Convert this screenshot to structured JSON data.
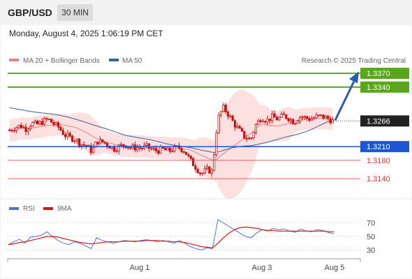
{
  "header": {
    "pair": "GBP/USD",
    "timeframe": "30 MIN"
  },
  "datetime": "Monday, August 4, 2025 1:06:19 PM CET",
  "legend": {
    "bollinger": "MA 20 + Bollinger Bands",
    "ma50": "MA 50",
    "credit": "Research © 2025 Trading Central",
    "rsi": "RSI",
    "rsi_ma": "9MA"
  },
  "colors": {
    "candle": "#cc1010",
    "bollinger": "#f08080",
    "bollinger_fill": "#fde0e0",
    "ma50": "#3a5f9a",
    "resistance": "#5aa51e",
    "pivot": "#1c56d6",
    "support": "#e03030",
    "arrow": "#2a5db0",
    "rsi": "#4a74d8",
    "rsi_ma": "#dd1111"
  },
  "chart_data": [
    {
      "type": "candlestick",
      "title": "GBP/USD",
      "timeframe": "30 MIN",
      "x_ticks": [
        "Aug 1",
        "Aug 3",
        "Aug 5"
      ],
      "ylim": [
        1.3125,
        1.339
      ],
      "last_price": "1.3266",
      "levels": [
        {
          "value": 1.337,
          "label": "1.3370",
          "kind": "resistance"
        },
        {
          "value": 1.334,
          "label": "1.3340",
          "kind": "resistance"
        },
        {
          "value": 1.321,
          "label": "1.3210",
          "kind": "pivot"
        },
        {
          "value": 1.318,
          "label": "1.3180",
          "kind": "support"
        },
        {
          "value": 1.314,
          "label": "1.3140",
          "kind": "support"
        }
      ],
      "series": [
        {
          "name": "MA 20 + Bollinger Bands",
          "type": "bollinger"
        },
        {
          "name": "MA 50",
          "type": "line"
        }
      ],
      "close_path": [
        1.3246,
        1.3252,
        1.3256,
        1.3249,
        1.3261,
        1.3258,
        1.3264,
        1.327,
        1.326,
        1.3252,
        1.3236,
        1.323,
        1.3226,
        1.3216,
        1.3212,
        1.32,
        1.3222,
        1.322,
        1.3214,
        1.3205,
        1.321,
        1.3215,
        1.3208,
        1.3208,
        1.3207,
        1.321,
        1.3203,
        1.3201,
        1.3204,
        1.32,
        1.3205,
        1.3208,
        1.32,
        1.318,
        1.3165,
        1.315,
        1.316,
        1.3155,
        1.327,
        1.3295,
        1.328,
        1.326,
        1.3245,
        1.323,
        1.3225,
        1.3258,
        1.3274,
        1.3267,
        1.3275,
        1.327,
        1.3278,
        1.3272,
        1.3263,
        1.3276,
        1.3273,
        1.327,
        1.3275,
        1.3276,
        1.3272,
        1.3266
      ]
    },
    {
      "type": "line",
      "title": "RSI",
      "ylim": [
        20,
        80
      ],
      "y_ticks": [
        70,
        50,
        30
      ],
      "series": [
        {
          "name": "RSI",
          "values": [
            38,
            42,
            46,
            40,
            49,
            50,
            52,
            57,
            50,
            44,
            40,
            38,
            42,
            40,
            36,
            32,
            48,
            44,
            42,
            40,
            42,
            44,
            43,
            42,
            44,
            45,
            44,
            42,
            44,
            42,
            40,
            44,
            40,
            35,
            32,
            30,
            33,
            32,
            75,
            70,
            65,
            60,
            55,
            50,
            48,
            55,
            60,
            58,
            62,
            60,
            61,
            58,
            56,
            61,
            58,
            57,
            60,
            59,
            56,
            54
          ]
        },
        {
          "name": "9MA",
          "values": [
            38,
            39,
            41,
            42,
            44,
            46,
            48,
            50,
            50,
            49,
            47,
            45,
            43,
            41,
            40,
            39,
            40,
            41,
            42,
            42,
            42,
            43,
            43,
            43,
            43,
            44,
            44,
            44,
            43,
            43,
            42,
            42,
            41,
            39,
            37,
            35,
            34,
            33,
            40,
            48,
            55,
            60,
            63,
            64,
            63,
            62,
            60,
            59,
            59,
            58,
            58,
            58,
            58,
            58,
            58,
            58,
            58,
            58,
            57,
            57
          ]
        }
      ]
    }
  ]
}
